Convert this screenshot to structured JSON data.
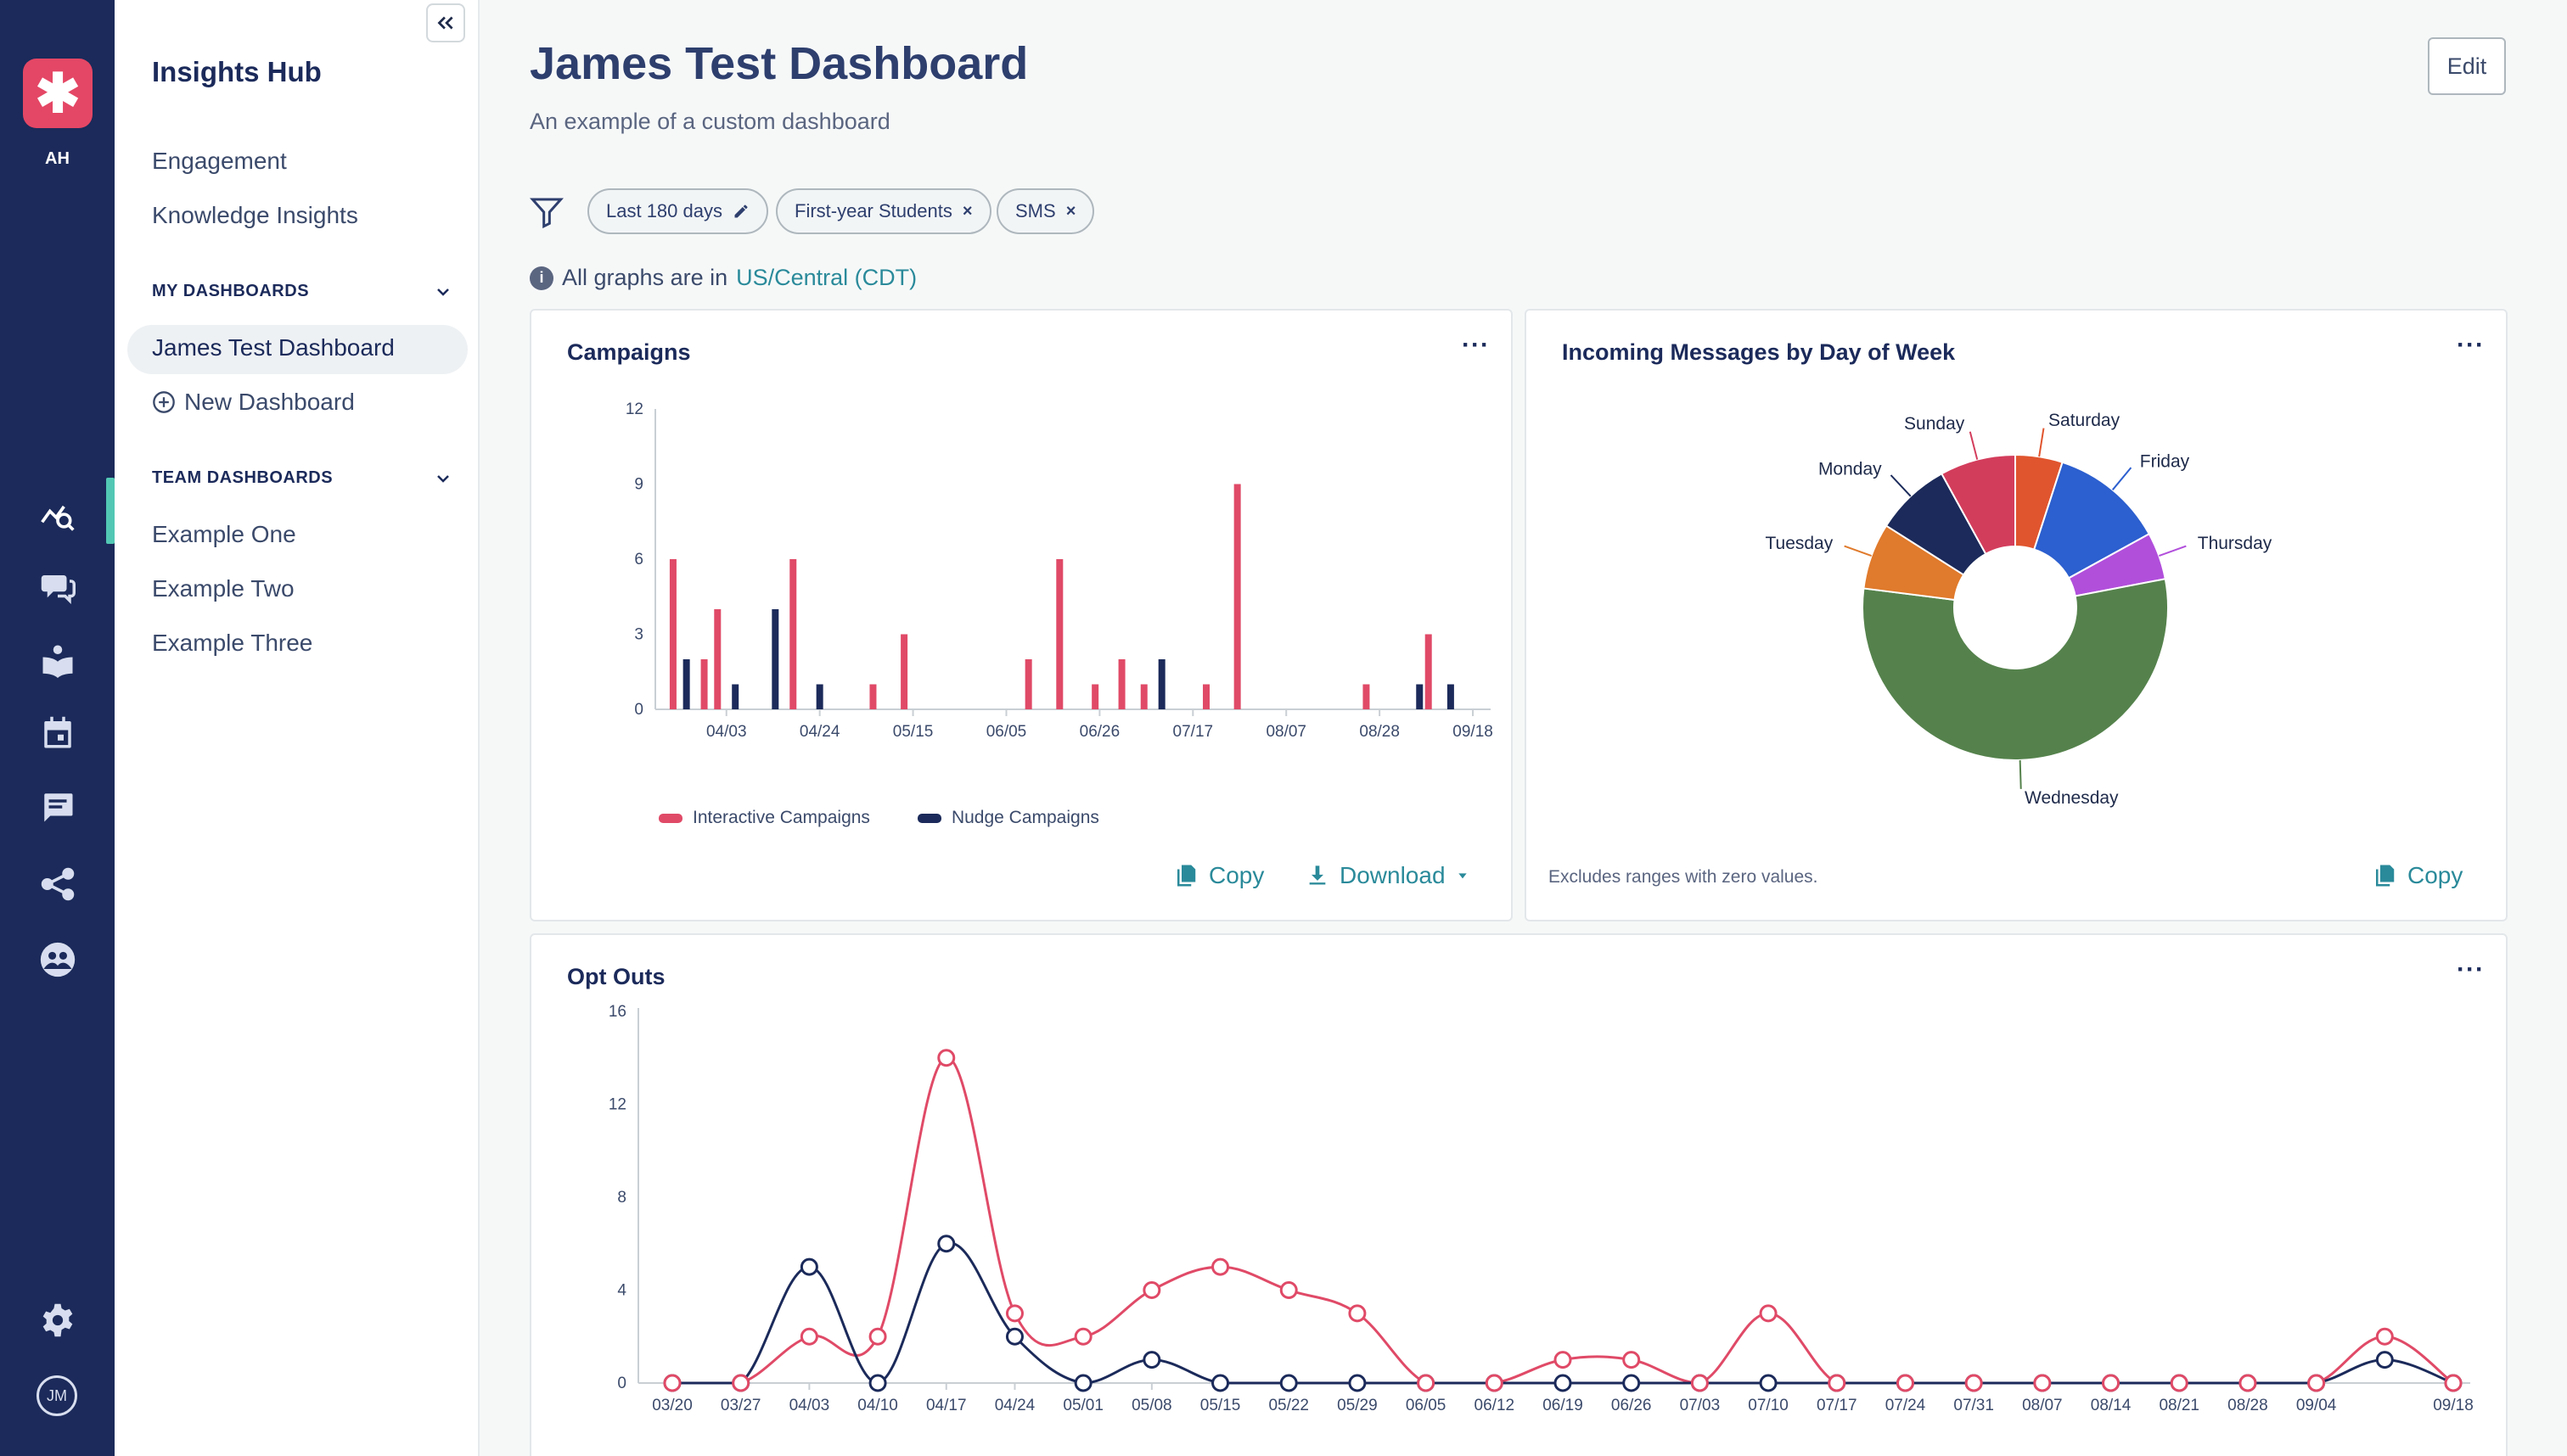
{
  "rail": {
    "initials": "AH",
    "avatar": "JM",
    "icons": [
      "insights-icon",
      "chat-bubbles-icon",
      "knowledge-book-icon",
      "calendar-icon",
      "message-icon",
      "share-network-icon",
      "community-icon",
      "settings-gear-icon"
    ]
  },
  "sidebar": {
    "title": "Insights Hub",
    "links": [
      "Engagement",
      "Knowledge Insights"
    ],
    "my_dashboards_header": "MY DASHBOARDS",
    "my_dashboards": [
      "James Test Dashboard"
    ],
    "new_dashboard": "New Dashboard",
    "team_dashboards_header": "TEAM DASHBOARDS",
    "team_dashboards": [
      "Example One",
      "Example Two",
      "Example Three"
    ]
  },
  "header": {
    "title": "James Test Dashboard",
    "subtitle": "An example of a custom dashboard",
    "edit_label": "Edit"
  },
  "filters": {
    "chips": [
      "Last 180 days",
      "First-year Students",
      "SMS"
    ]
  },
  "timezone": {
    "prefix": "All graphs are in",
    "zone": "US/Central (CDT)"
  },
  "campaigns_card": {
    "title": "Campaigns",
    "copy_label": "Copy",
    "download_label": "Download"
  },
  "messages_card": {
    "title": "Incoming Messages by Day of Week",
    "note": "Excludes ranges with zero values.",
    "copy_label": "Copy"
  },
  "optouts_card": {
    "title": "Opt Outs"
  },
  "colors": {
    "interactive": "#e04a67",
    "nudge": "#1b2a5a",
    "accent": "#2a8a9a",
    "rail": "#1b2a5a"
  },
  "chart_data": [
    {
      "type": "bar",
      "title": "Campaigns",
      "ylim": [
        0,
        12
      ],
      "yticks": [
        0,
        3,
        6,
        9,
        12
      ],
      "xtick_labels": [
        "04/03",
        "04/24",
        "05/15",
        "06/05",
        "06/26",
        "07/17",
        "08/07",
        "08/28",
        "09/18"
      ],
      "legend_position": "bottom-left",
      "series": [
        {
          "name": "Interactive Campaigns",
          "color": "#e04a67",
          "points": [
            [
              "03/22",
              6
            ],
            [
              "03/29",
              2
            ],
            [
              "04/01",
              4
            ],
            [
              "04/18",
              6
            ],
            [
              "05/06",
              1
            ],
            [
              "05/13",
              3
            ],
            [
              "06/10",
              2
            ],
            [
              "06/17",
              6
            ],
            [
              "06/25",
              1
            ],
            [
              "07/01",
              2
            ],
            [
              "07/06",
              1
            ],
            [
              "07/20",
              1
            ],
            [
              "07/27",
              9
            ],
            [
              "08/25",
              1
            ],
            [
              "09/08",
              3
            ]
          ]
        },
        {
          "name": "Nudge Campaigns",
          "color": "#1b2a5a",
          "points": [
            [
              "03/25",
              2
            ],
            [
              "04/05",
              1
            ],
            [
              "04/14",
              4
            ],
            [
              "04/24",
              1
            ],
            [
              "07/10",
              2
            ],
            [
              "09/06",
              1
            ],
            [
              "09/13",
              1
            ]
          ]
        }
      ]
    },
    {
      "type": "pie",
      "title": "Incoming Messages by Day of Week",
      "donut": true,
      "slices": [
        {
          "label": "Saturday",
          "value": 5,
          "color": "#e0552e"
        },
        {
          "label": "Friday",
          "value": 12,
          "color": "#2c5fcf"
        },
        {
          "label": "Thursday",
          "value": 5,
          "color": "#b14fdb"
        },
        {
          "label": "Wednesday",
          "value": 55,
          "color": "#55824c"
        },
        {
          "label": "Tuesday",
          "value": 7,
          "color": "#e07a2c"
        },
        {
          "label": "Monday",
          "value": 8,
          "color": "#1b2a5a"
        },
        {
          "label": "Sunday",
          "value": 8,
          "color": "#d33d5c"
        }
      ]
    },
    {
      "type": "line",
      "title": "Opt Outs",
      "ylim": [
        0,
        16
      ],
      "yticks": [
        0,
        4,
        8,
        12,
        16
      ],
      "x": [
        "03/20",
        "03/27",
        "04/03",
        "04/10",
        "04/17",
        "04/24",
        "05/01",
        "05/08",
        "05/15",
        "05/22",
        "05/29",
        "06/05",
        "06/12",
        "06/19",
        "06/26",
        "07/03",
        "07/10",
        "07/17",
        "07/24",
        "07/31",
        "08/07",
        "08/14",
        "08/21",
        "08/28",
        "09/04",
        "09/11",
        "09/18"
      ],
      "xtick_labels": [
        "03/20",
        "03/27",
        "04/03",
        "04/10",
        "04/17",
        "04/24",
        "05/01",
        "05/08",
        "05/15",
        "05/22",
        "05/29",
        "06/05",
        "06/12",
        "06/19",
        "06/26",
        "07/03",
        "07/10",
        "07/17",
        "07/24",
        "07/31",
        "08/07",
        "08/14",
        "08/21",
        "08/28",
        "09/04",
        "09/18"
      ],
      "series": [
        {
          "color": "#e04a67",
          "values": [
            0,
            0,
            2,
            2,
            14,
            3,
            2,
            4,
            5,
            4,
            3,
            0,
            0,
            1,
            1,
            0,
            3,
            0,
            0,
            0,
            0,
            0,
            0,
            0,
            0,
            2,
            0
          ]
        },
        {
          "color": "#1b2a5a",
          "values": [
            0,
            0,
            5,
            0,
            6,
            2,
            0,
            1,
            0,
            0,
            0,
            0,
            0,
            0,
            0,
            0,
            0,
            0,
            0,
            0,
            0,
            0,
            0,
            0,
            0,
            1,
            0
          ]
        }
      ]
    }
  ]
}
